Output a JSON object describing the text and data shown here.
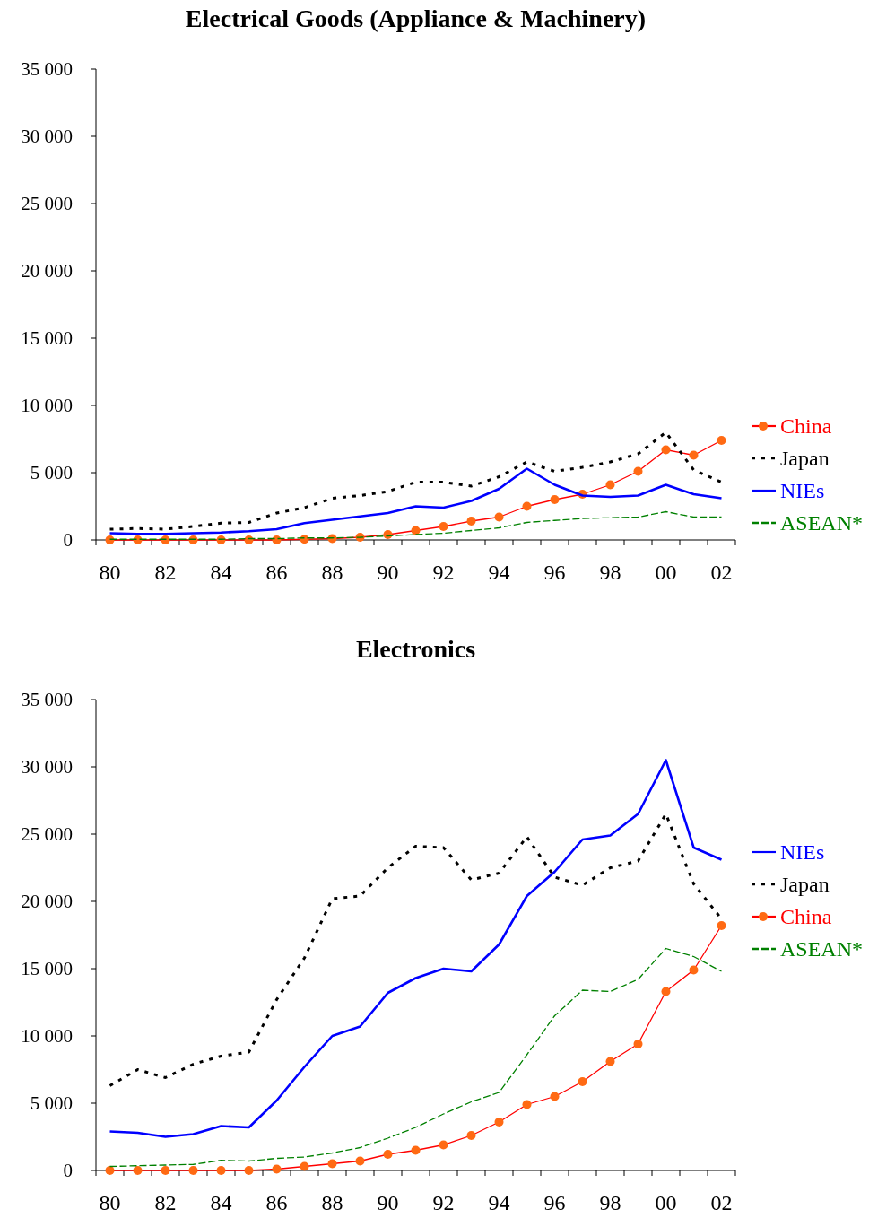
{
  "chart_data": [
    {
      "type": "line",
      "title": "Electrical Goods (Appliance & Machinery)",
      "categories": [
        "80",
        null,
        "82",
        null,
        "84",
        null,
        "86",
        null,
        "88",
        null,
        "90",
        null,
        "92",
        null,
        "94",
        null,
        "96",
        null,
        "98",
        null,
        "00",
        null,
        "02"
      ],
      "ylim": [
        0,
        35000
      ],
      "yticks": [
        {
          "value": 0,
          "label": "0"
        },
        {
          "value": 5000,
          "label": "5 000"
        },
        {
          "value": 10000,
          "label": "10 000"
        },
        {
          "value": 15000,
          "label": "15 000"
        },
        {
          "value": 20000,
          "label": "20 000"
        },
        {
          "value": 25000,
          "label": "25 000"
        },
        {
          "value": 30000,
          "label": "30 000"
        },
        {
          "value": 35000,
          "label": "35 000"
        }
      ],
      "legend": "right",
      "grid": false,
      "series": [
        {
          "name": "China",
          "color": "#ff0000",
          "marker": "circle",
          "line_style": "solid",
          "values": [
            0,
            0,
            0,
            0,
            0,
            0,
            0,
            50,
            100,
            200,
            400,
            700,
            1000,
            1400,
            1700,
            2500,
            3000,
            3400,
            4100,
            5100,
            6700,
            6300,
            7400
          ]
        },
        {
          "name": "Japan",
          "color": "#000000",
          "marker": "none",
          "line_style": "dotted",
          "values": [
            800,
            850,
            800,
            1000,
            1250,
            1300,
            2000,
            2400,
            3100,
            3300,
            3600,
            4300,
            4300,
            4000,
            4700,
            5800,
            5100,
            5400,
            5800,
            6400,
            8000,
            5200,
            4300
          ]
        },
        {
          "name": "NIEs",
          "color": "#0000ff",
          "marker": "none",
          "line_style": "solid",
          "values": [
            500,
            450,
            450,
            500,
            550,
            650,
            800,
            1250,
            1500,
            1750,
            2000,
            2500,
            2400,
            2900,
            3800,
            5300,
            4100,
            3300,
            3200,
            3300,
            4100,
            3400,
            3100
          ]
        },
        {
          "name": "ASEAN*",
          "color": "#008000",
          "marker": "none",
          "line_style": "dashed",
          "values": [
            50,
            50,
            50,
            50,
            50,
            100,
            100,
            150,
            150,
            200,
            300,
            400,
            500,
            700,
            900,
            1300,
            1450,
            1600,
            1650,
            1700,
            2100,
            1700,
            1700
          ]
        }
      ]
    },
    {
      "type": "line",
      "title": "Electronics",
      "categories": [
        "80",
        null,
        "82",
        null,
        "84",
        null,
        "86",
        null,
        "88",
        null,
        "90",
        null,
        "92",
        null,
        "94",
        null,
        "96",
        null,
        "98",
        null,
        "00",
        null,
        "02"
      ],
      "ylim": [
        0,
        35000
      ],
      "yticks": [
        {
          "value": 0,
          "label": "0"
        },
        {
          "value": 5000,
          "label": "5 000"
        },
        {
          "value": 10000,
          "label": "10 000"
        },
        {
          "value": 15000,
          "label": "15 000"
        },
        {
          "value": 20000,
          "label": "20 000"
        },
        {
          "value": 25000,
          "label": "25 000"
        },
        {
          "value": 30000,
          "label": "30 000"
        },
        {
          "value": 35000,
          "label": "35 000"
        }
      ],
      "legend": "right",
      "grid": false,
      "series": [
        {
          "name": "NIEs",
          "color": "#0000ff",
          "marker": "none",
          "line_style": "solid",
          "values": [
            2900,
            2800,
            2500,
            2700,
            3300,
            3200,
            5200,
            7700,
            10000,
            10700,
            13200,
            14300,
            15000,
            14800,
            16800,
            20400,
            22200,
            24600,
            24900,
            26500,
            30500,
            24000,
            23100
          ]
        },
        {
          "name": "Japan",
          "color": "#000000",
          "marker": "none",
          "line_style": "dotted",
          "values": [
            6300,
            7500,
            6900,
            7900,
            8500,
            8800,
            12700,
            15800,
            20200,
            20400,
            22500,
            24100,
            24000,
            21600,
            22100,
            24800,
            21800,
            21200,
            22500,
            23000,
            26500,
            21300,
            18700
          ]
        },
        {
          "name": "China",
          "color": "#ff0000",
          "marker": "circle",
          "line_style": "solid",
          "values": [
            0,
            0,
            0,
            0,
            0,
            0,
            100,
            300,
            500,
            700,
            1200,
            1500,
            1900,
            2600,
            3600,
            4900,
            5500,
            6600,
            8100,
            9400,
            13300,
            14900,
            18200
          ]
        },
        {
          "name": "ASEAN*",
          "color": "#008000",
          "marker": "none",
          "line_style": "dashed",
          "values": [
            300,
            350,
            400,
            450,
            750,
            700,
            900,
            1000,
            1300,
            1700,
            2400,
            3200,
            4200,
            5100,
            5800,
            8600,
            11500,
            13400,
            13300,
            14200,
            16500,
            15900,
            14800
          ]
        }
      ]
    }
  ]
}
